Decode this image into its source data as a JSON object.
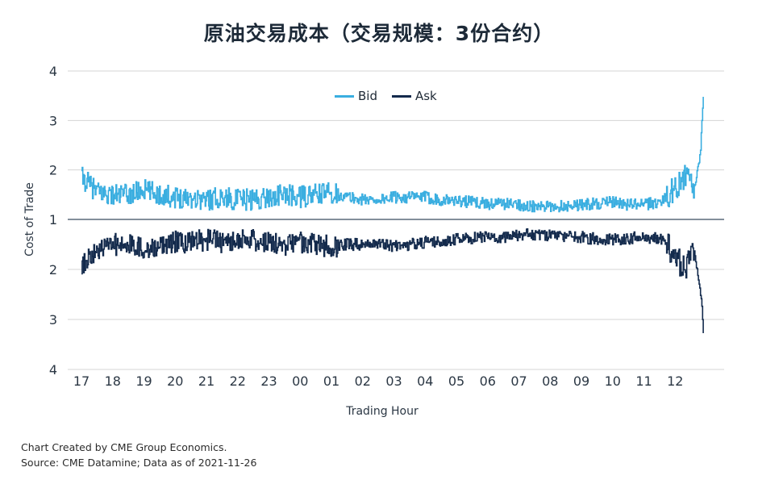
{
  "title": "原油交易成本（交易规模：3份合约）",
  "footnotes": {
    "line1": "Chart Created by CME Group Economics.",
    "line2": "Source:  CME Datamine; Data as of 2021-11-26"
  },
  "colors": {
    "bid": "#3aaee0",
    "ask": "#132a4c",
    "grid": "#d4d4d4",
    "baseline": "#5a6a7a"
  },
  "chart_data": {
    "type": "line",
    "title": "原油交易成本（交易规模：3份合约）",
    "xlabel": "Trading Hour",
    "ylabel": "Cost of Trade",
    "x_ticks": [
      "17",
      "18",
      "19",
      "20",
      "21",
      "22",
      "23",
      "00",
      "01",
      "02",
      "03",
      "04",
      "05",
      "06",
      "07",
      "08",
      "09",
      "10",
      "11",
      "12"
    ],
    "y_tick_labels": [
      "4",
      "3",
      "2",
      "1",
      "2",
      "3",
      "4"
    ],
    "bid_ylim": [
      1,
      4
    ],
    "ask_ylim": [
      1,
      4
    ],
    "ask_axis_inverted": true,
    "grid": true,
    "legend": {
      "position": "top-center",
      "entries": [
        "Bid",
        "Ask"
      ]
    },
    "series": [
      {
        "name": "Bid",
        "direction": "up",
        "x": [
          17.0,
          17.5,
          18.0,
          18.5,
          19.0,
          19.5,
          20.0,
          20.5,
          21.0,
          21.5,
          22.0,
          22.5,
          23.0,
          23.5,
          24.0,
          24.5,
          25.0,
          25.5,
          26.0,
          26.5,
          27.0,
          27.5,
          28.0,
          28.5,
          29.0,
          29.5,
          30.0,
          30.5,
          31.0,
          31.5,
          32.0,
          32.5,
          33.0,
          33.5,
          34.0,
          34.5,
          35.0,
          35.5,
          36.0,
          36.2,
          36.4,
          36.6,
          36.7,
          36.8,
          36.85,
          36.9
        ],
        "values": [
          1.85,
          1.55,
          1.5,
          1.5,
          1.6,
          1.5,
          1.45,
          1.45,
          1.4,
          1.45,
          1.4,
          1.4,
          1.45,
          1.5,
          1.45,
          1.5,
          1.55,
          1.45,
          1.4,
          1.4,
          1.45,
          1.45,
          1.45,
          1.4,
          1.38,
          1.35,
          1.32,
          1.32,
          1.3,
          1.25,
          1.25,
          1.28,
          1.3,
          1.32,
          1.35,
          1.3,
          1.3,
          1.35,
          1.6,
          1.9,
          1.8,
          1.6,
          1.95,
          2.3,
          2.9,
          3.45
        ]
      },
      {
        "name": "Ask",
        "direction": "down",
        "x": [
          17.0,
          17.5,
          18.0,
          18.5,
          19.0,
          19.5,
          20.0,
          20.5,
          21.0,
          21.5,
          22.0,
          22.5,
          23.0,
          23.5,
          24.0,
          24.5,
          25.0,
          25.5,
          26.0,
          26.5,
          27.0,
          27.5,
          28.0,
          28.5,
          29.0,
          29.5,
          30.0,
          30.5,
          31.0,
          31.5,
          32.0,
          32.5,
          33.0,
          33.5,
          34.0,
          34.5,
          35.0,
          35.5,
          36.0,
          36.2,
          36.4,
          36.6,
          36.7,
          36.8,
          36.85,
          36.9
        ],
        "values": [
          1.9,
          1.6,
          1.5,
          1.5,
          1.6,
          1.5,
          1.45,
          1.45,
          1.4,
          1.45,
          1.4,
          1.4,
          1.45,
          1.5,
          1.45,
          1.5,
          1.55,
          1.5,
          1.5,
          1.5,
          1.55,
          1.5,
          1.45,
          1.45,
          1.4,
          1.38,
          1.35,
          1.35,
          1.3,
          1.3,
          1.32,
          1.35,
          1.35,
          1.4,
          1.4,
          1.38,
          1.35,
          1.4,
          1.7,
          1.95,
          1.9,
          1.6,
          2.0,
          2.4,
          2.7,
          3.25
        ]
      }
    ]
  }
}
